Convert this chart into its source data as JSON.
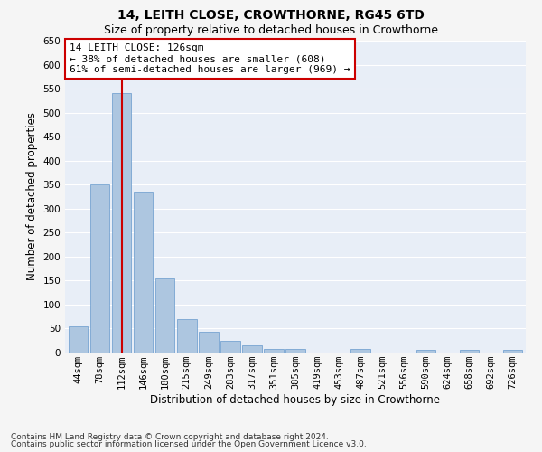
{
  "title_line1": "14, LEITH CLOSE, CROWTHORNE, RG45 6TD",
  "title_line2": "Size of property relative to detached houses in Crowthorne",
  "xlabel": "Distribution of detached houses by size in Crowthorne",
  "ylabel": "Number of detached properties",
  "categories": [
    "44sqm",
    "78sqm",
    "112sqm",
    "146sqm",
    "180sqm",
    "215sqm",
    "249sqm",
    "283sqm",
    "317sqm",
    "351sqm",
    "385sqm",
    "419sqm",
    "453sqm",
    "487sqm",
    "521sqm",
    "556sqm",
    "590sqm",
    "624sqm",
    "658sqm",
    "692sqm",
    "726sqm"
  ],
  "values": [
    55,
    350,
    540,
    335,
    155,
    70,
    43,
    25,
    15,
    8,
    8,
    0,
    0,
    8,
    0,
    0,
    5,
    0,
    5,
    0,
    5
  ],
  "bar_color": "#adc6e0",
  "bar_edge_color": "#6699cc",
  "property_bin_index": 2,
  "vline_color": "#cc0000",
  "annotation_text": "14 LEITH CLOSE: 126sqm\n← 38% of detached houses are smaller (608)\n61% of semi-detached houses are larger (969) →",
  "annotation_box_color": "#ffffff",
  "annotation_box_edge_color": "#cc0000",
  "footnote1": "Contains HM Land Registry data © Crown copyright and database right 2024.",
  "footnote2": "Contains public sector information licensed under the Open Government Licence v3.0.",
  "ylim": [
    0,
    650
  ],
  "yticks": [
    0,
    50,
    100,
    150,
    200,
    250,
    300,
    350,
    400,
    450,
    500,
    550,
    600,
    650
  ],
  "plot_bg_color": "#e8eef7",
  "fig_bg_color": "#f5f5f5",
  "grid_color": "#ffffff",
  "title_fontsize": 10,
  "subtitle_fontsize": 9,
  "axis_label_fontsize": 8.5,
  "tick_fontsize": 7.5,
  "annotation_fontsize": 8,
  "footnote_fontsize": 6.5
}
